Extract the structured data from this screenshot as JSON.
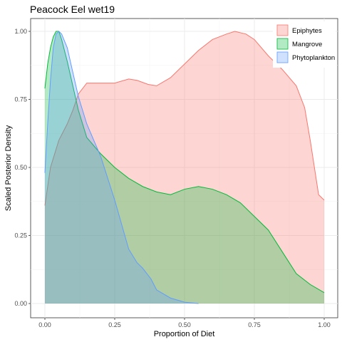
{
  "chart_data": {
    "type": "area",
    "title": "Peacock Eel wet19",
    "xlabel": "Proportion of Diet",
    "ylabel": "Scaled Posterior Density",
    "xlim": [
      0,
      1
    ],
    "ylim": [
      0,
      1
    ],
    "xticks": [
      0,
      0.25,
      0.5,
      0.75,
      1
    ],
    "xtick_labels": [
      "0.00",
      "0.25",
      "0.50",
      "0.75",
      "1.00"
    ],
    "yticks": [
      0,
      0.25,
      0.5,
      0.75,
      1
    ],
    "ytick_labels": [
      "0.00",
      "0.25",
      "0.50",
      "0.75",
      "1.00"
    ],
    "grid": true,
    "legend_position": "top-right",
    "series": [
      {
        "name": "Epiphytes",
        "color": "#F8766D",
        "x": [
          0,
          0.02,
          0.05,
          0.08,
          0.1,
          0.12,
          0.15,
          0.2,
          0.25,
          0.3,
          0.33,
          0.37,
          0.4,
          0.45,
          0.5,
          0.55,
          0.6,
          0.65,
          0.68,
          0.72,
          0.75,
          0.8,
          0.85,
          0.9,
          0.93,
          0.95,
          0.98,
          1.0
        ],
        "y": [
          0.36,
          0.5,
          0.6,
          0.66,
          0.71,
          0.77,
          0.81,
          0.81,
          0.81,
          0.825,
          0.82,
          0.805,
          0.8,
          0.83,
          0.88,
          0.93,
          0.97,
          0.99,
          1.0,
          0.99,
          0.97,
          0.91,
          0.86,
          0.8,
          0.72,
          0.6,
          0.4,
          0.38
        ]
      },
      {
        "name": "Mangrove",
        "color": "#00BA38",
        "x": [
          0,
          0.01,
          0.02,
          0.03,
          0.04,
          0.05,
          0.06,
          0.08,
          0.1,
          0.12,
          0.15,
          0.2,
          0.25,
          0.3,
          0.35,
          0.4,
          0.45,
          0.5,
          0.55,
          0.6,
          0.65,
          0.7,
          0.75,
          0.8,
          0.85,
          0.9,
          0.95,
          1.0
        ],
        "y": [
          0.79,
          0.88,
          0.94,
          0.98,
          1.0,
          1.0,
          0.97,
          0.89,
          0.8,
          0.71,
          0.61,
          0.55,
          0.5,
          0.46,
          0.43,
          0.41,
          0.4,
          0.42,
          0.43,
          0.42,
          0.4,
          0.37,
          0.32,
          0.27,
          0.19,
          0.11,
          0.07,
          0.04
        ]
      },
      {
        "name": "Phytoplankton",
        "color": "#619CFF",
        "x": [
          0,
          0.01,
          0.02,
          0.03,
          0.04,
          0.05,
          0.06,
          0.08,
          0.1,
          0.12,
          0.15,
          0.2,
          0.25,
          0.3,
          0.33,
          0.35,
          0.38,
          0.4,
          0.45,
          0.5,
          0.55
        ],
        "y": [
          0.48,
          0.66,
          0.82,
          0.94,
          0.99,
          1.0,
          0.99,
          0.94,
          0.85,
          0.76,
          0.66,
          0.54,
          0.38,
          0.2,
          0.15,
          0.13,
          0.09,
          0.05,
          0.02,
          0.005,
          0
        ]
      }
    ]
  }
}
